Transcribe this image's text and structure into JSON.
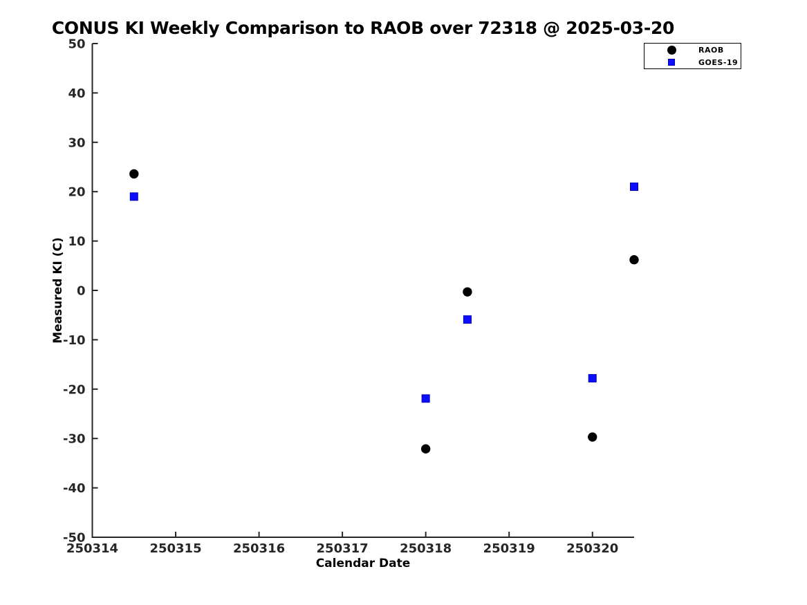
{
  "chart_data": {
    "type": "scatter",
    "title": "CONUS KI Weekly Comparison to RAOB over 72318 @ 2025-03-20",
    "xlabel": "Calendar Date",
    "ylabel": "Measured KI (C)",
    "xlim": [
      250314,
      250320.5
    ],
    "ylim": [
      -50,
      50
    ],
    "xticks": [
      250314,
      250315,
      250316,
      250317,
      250318,
      250319,
      250320
    ],
    "yticks": [
      50,
      40,
      30,
      20,
      10,
      0,
      -10,
      -20,
      -30,
      -40,
      -50
    ],
    "grid": false,
    "legend_position": "top-right",
    "axis_color": "#262626",
    "series": [
      {
        "name": "RAOB",
        "marker": "circle",
        "color": "#000000",
        "edge_color": "#000000",
        "x": [
          250314.5,
          250318.0,
          250318.5,
          250320.0,
          250320.5
        ],
        "y": [
          23.6,
          -32.1,
          -0.3,
          -29.7,
          6.2
        ]
      },
      {
        "name": "GOES-19",
        "marker": "square",
        "color": "#0d0dff",
        "edge_color": "#0000b0",
        "x": [
          250314.5,
          250318.0,
          250318.5,
          250320.0,
          250320.5
        ],
        "y": [
          19.0,
          -21.9,
          -5.9,
          -17.8,
          21.0
        ]
      }
    ]
  }
}
